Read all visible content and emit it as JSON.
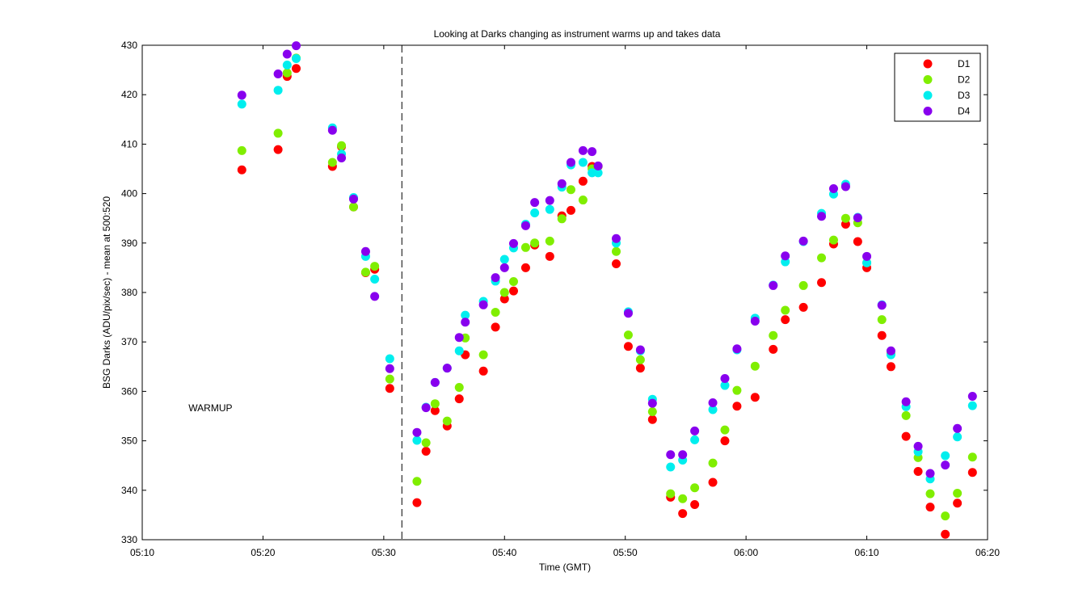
{
  "chart_data": {
    "type": "scatter",
    "title": "Looking at Darks changing as instrument warms up and takes data",
    "xlabel": "Time (GMT)",
    "ylabel": "BSG Darks (ADU/pix/sec) - mean at 500:520",
    "xlim": [
      "05:10",
      "06:20"
    ],
    "ylim": [
      330,
      430
    ],
    "x_ticks": [
      "05:10",
      "05:20",
      "05:30",
      "05:40",
      "05:50",
      "06:00",
      "06:10",
      "06:20"
    ],
    "y_ticks": [
      330,
      340,
      350,
      360,
      370,
      380,
      390,
      400,
      410,
      420,
      430
    ],
    "grid": false,
    "legend_position": "top-right",
    "annotation": {
      "text": "WARMUP",
      "x": "05:13:50",
      "y": 356
    },
    "vline": {
      "x": "05:31:30",
      "style": "dashed"
    },
    "x": [
      "05:18:15",
      "05:21:15",
      "05:22:00",
      "05:22:45",
      "05:25:45",
      "05:26:30",
      "05:27:30",
      "05:28:30",
      "05:29:15",
      "05:30:30",
      "05:32:45",
      "05:33:30",
      "05:34:15",
      "05:35:15",
      "05:36:15",
      "05:36:45",
      "05:38:15",
      "05:39:15",
      "05:40:00",
      "05:40:45",
      "05:41:45",
      "05:42:30",
      "05:43:45",
      "05:44:45",
      "05:45:30",
      "05:46:30",
      "05:47:15",
      "05:47:45",
      "05:49:15",
      "05:50:15",
      "05:51:15",
      "05:52:15",
      "05:53:45",
      "05:54:45",
      "05:55:45",
      "05:57:15",
      "05:58:15",
      "05:59:15",
      "06:00:45",
      "06:02:15",
      "06:03:15",
      "06:04:45",
      "06:06:15",
      "06:07:15",
      "06:08:15",
      "06:09:15",
      "06:10:00",
      "06:11:15",
      "06:12:00",
      "06:13:15",
      "06:14:15",
      "06:15:15",
      "06:16:30",
      "06:17:30",
      "06:18:45"
    ],
    "series": [
      {
        "name": "D1",
        "color": "#ff0000",
        "values": [
          404.8,
          408.9,
          423.7,
          425.3,
          405.5,
          409.5,
          397.3,
          384.0,
          384.7,
          360.6,
          337.5,
          347.9,
          356.1,
          353.0,
          358.5,
          367.4,
          364.1,
          373.0,
          378.7,
          380.3,
          385.0,
          389.6,
          387.3,
          395.5,
          396.6,
          402.5,
          405.5,
          405.5,
          385.8,
          369.1,
          364.7,
          354.3,
          338.6,
          335.3,
          337.1,
          341.6,
          350.0,
          357.0,
          358.8,
          368.5,
          374.5,
          377.0,
          382.0,
          389.8,
          393.8,
          390.3,
          385.0,
          371.3,
          365.0,
          350.9,
          343.8,
          336.6,
          331.1,
          337.4,
          343.6
        ]
      },
      {
        "name": "D2",
        "color": "#80ee00",
        "values": [
          408.7,
          412.2,
          424.4,
          427.4,
          406.3,
          409.7,
          397.3,
          384.1,
          385.3,
          362.5,
          341.8,
          349.6,
          357.5,
          354.0,
          360.8,
          370.8,
          367.4,
          376.0,
          380.0,
          382.2,
          389.1,
          390.0,
          390.4,
          394.9,
          400.8,
          398.7,
          405.0,
          405.5,
          388.3,
          371.4,
          366.4,
          355.9,
          339.3,
          338.3,
          340.5,
          345.5,
          352.2,
          360.2,
          365.1,
          371.3,
          376.4,
          381.4,
          387.0,
          390.6,
          395.0,
          394.1,
          386.0,
          374.5,
          367.6,
          355.1,
          346.6,
          339.3,
          334.8,
          339.4,
          346.7
        ]
      },
      {
        "name": "D3",
        "color": "#00eeee",
        "values": [
          418.1,
          420.9,
          426.0,
          427.3,
          413.3,
          408.0,
          399.2,
          387.3,
          382.7,
          366.6,
          350.1,
          356.8,
          361.8,
          364.7,
          368.2,
          375.4,
          378.2,
          382.3,
          386.7,
          389.0,
          393.8,
          396.1,
          396.8,
          401.3,
          405.8,
          406.3,
          404.2,
          404.2,
          390.0,
          376.1,
          368.2,
          358.4,
          344.7,
          346.1,
          350.2,
          356.3,
          361.2,
          368.4,
          374.8,
          381.5,
          386.2,
          390.3,
          396.0,
          399.9,
          401.9,
          395.2,
          386.0,
          377.5,
          367.4,
          356.9,
          347.8,
          342.3,
          347.0,
          350.8,
          357.1
        ]
      },
      {
        "name": "D4",
        "color": "#8800ee",
        "values": [
          419.9,
          424.2,
          428.2,
          429.9,
          412.8,
          407.2,
          398.9,
          388.3,
          379.2,
          364.6,
          351.7,
          356.7,
          361.8,
          364.7,
          370.9,
          374.0,
          377.5,
          383.0,
          385.0,
          389.9,
          393.5,
          398.2,
          398.6,
          402.0,
          406.3,
          408.7,
          408.5,
          405.6,
          390.9,
          375.8,
          368.4,
          357.6,
          347.2,
          347.2,
          352.0,
          357.7,
          362.6,
          368.6,
          374.2,
          381.4,
          387.4,
          390.4,
          395.4,
          401.0,
          401.4,
          395.1,
          387.3,
          377.4,
          368.2,
          357.9,
          348.9,
          343.4,
          345.1,
          352.5,
          359.0
        ]
      }
    ]
  }
}
